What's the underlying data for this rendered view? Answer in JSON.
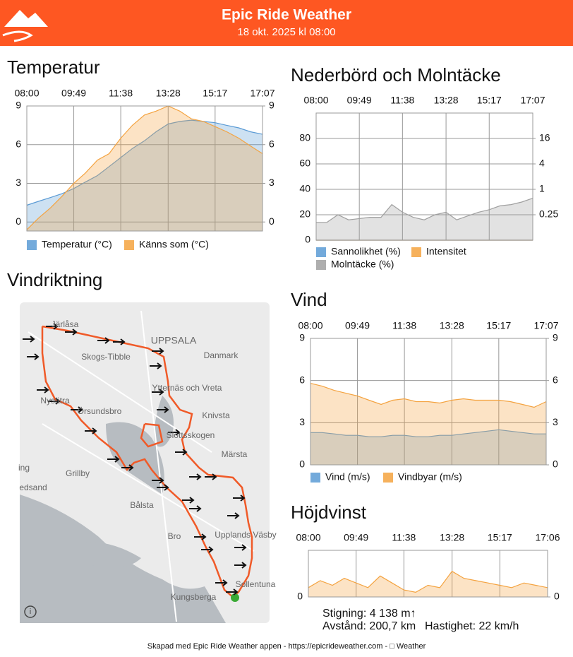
{
  "header": {
    "title": "Epic Ride Weather",
    "subtitle": "18 okt. 2025 kl 08:00"
  },
  "sections": {
    "wind_direction": "Vindriktning"
  },
  "map": {
    "labels": [
      "Järlåsa",
      "UPPSALA",
      "Skogs-Tibble",
      "Danmark",
      "Ytternäs och Vreta",
      "Knivsta",
      "Nysätra",
      "Örsundsbro",
      "Slottsskogen",
      "Märsta",
      "ing",
      "Grillby",
      "edsand",
      "Bålsta",
      "Bro",
      "Upplands Väsby",
      "Sollentuna",
      "Kungsberga"
    ]
  },
  "stats": {
    "climb": "Stigning: 4 138 m↑",
    "distance": "Avstånd: 200,7 km",
    "speed": "Hastighet: 22 km/h"
  },
  "footer": "Skapad med Epic Ride Weather appen - https://epicrideweather.com - □ Weather",
  "chart_data": [
    {
      "type": "area",
      "title": "Temperatur",
      "x": [
        "08:00",
        "08:27",
        "08:55",
        "09:22",
        "09:49",
        "10:16",
        "10:44",
        "11:11",
        "11:38",
        "12:05",
        "12:33",
        "13:00",
        "13:28",
        "13:55",
        "14:22",
        "14:50",
        "15:17",
        "15:44",
        "16:12",
        "16:39",
        "17:07"
      ],
      "xticks": [
        "08:00",
        "09:49",
        "11:38",
        "13:28",
        "15:17",
        "17:07"
      ],
      "ylim": [
        -0.7,
        9
      ],
      "yticks": [
        0,
        3,
        6,
        9
      ],
      "y2lim": [
        -0.7,
        9
      ],
      "y2ticks": [
        0,
        3,
        6,
        9
      ],
      "grid": true,
      "series": [
        {
          "name": "Temperatur (°C)",
          "color": "#5b9bd5",
          "values": [
            1.3,
            1.6,
            1.9,
            2.2,
            2.6,
            3.1,
            3.6,
            4.3,
            5.0,
            5.7,
            6.3,
            7.0,
            7.6,
            7.8,
            7.9,
            7.8,
            7.7,
            7.5,
            7.3,
            7.0,
            6.8
          ]
        },
        {
          "name": "Känns som (°C)",
          "color": "#f4a340",
          "values": [
            -0.6,
            0.3,
            1.1,
            2.0,
            3.0,
            3.8,
            4.8,
            5.3,
            6.5,
            7.5,
            8.3,
            8.6,
            9.0,
            8.6,
            8.0,
            7.8,
            7.4,
            7.0,
            6.5,
            5.9,
            5.3
          ]
        }
      ]
    },
    {
      "type": "area",
      "title": "Nederbörd och Molntäcke",
      "x": [
        "08:00",
        "08:27",
        "08:55",
        "09:22",
        "09:49",
        "10:16",
        "10:44",
        "11:11",
        "11:38",
        "12:05",
        "12:33",
        "13:00",
        "13:28",
        "13:55",
        "14:22",
        "14:50",
        "15:17",
        "15:44",
        "16:12",
        "16:39",
        "17:07"
      ],
      "xticks": [
        "08:00",
        "09:49",
        "11:38",
        "13:28",
        "15:17",
        "17:07"
      ],
      "ylim": [
        0,
        100
      ],
      "yticks": [
        0,
        20,
        40,
        60,
        80
      ],
      "y2lim": [
        0.0625,
        64
      ],
      "y2ticks": [
        0.25,
        1,
        4,
        16
      ],
      "y2log": true,
      "grid": true,
      "series": [
        {
          "name": "Sannolikhet (%)",
          "color": "#5b9bd5",
          "values": [
            0,
            0,
            0,
            0,
            0,
            0,
            0,
            0,
            0,
            0,
            0,
            0,
            0,
            0,
            0,
            0,
            0,
            0,
            0,
            0,
            0
          ]
        },
        {
          "name": "Intensitet",
          "color": "#f4a340",
          "axis": "y2",
          "values": [
            0,
            0,
            0,
            0,
            0,
            0,
            0,
            0,
            0,
            0,
            0,
            0,
            0,
            0,
            0,
            0,
            0,
            0,
            0,
            0,
            0
          ]
        },
        {
          "name": "Molntäcke (%)",
          "color": "#a0a0a0",
          "values": [
            14,
            14,
            20,
            16,
            17,
            18,
            18,
            28,
            22,
            18,
            16,
            20,
            22,
            16,
            19,
            22,
            24,
            27,
            28,
            30,
            33
          ]
        }
      ]
    },
    {
      "type": "area",
      "title": "Vind",
      "x": [
        "08:00",
        "08:27",
        "08:55",
        "09:22",
        "09:49",
        "10:16",
        "10:44",
        "11:11",
        "11:38",
        "12:05",
        "12:33",
        "13:00",
        "13:28",
        "13:55",
        "14:22",
        "14:50",
        "15:17",
        "15:44",
        "16:12",
        "16:39",
        "17:07"
      ],
      "xticks": [
        "08:00",
        "09:49",
        "11:38",
        "13:28",
        "15:17",
        "17:07"
      ],
      "ylim": [
        0,
        9
      ],
      "yticks": [
        0,
        3,
        6,
        9
      ],
      "y2lim": [
        0,
        9
      ],
      "y2ticks": [
        0,
        3,
        6,
        9
      ],
      "grid": true,
      "series": [
        {
          "name": "Vind (m/s)",
          "color": "#5b9bd5",
          "values": [
            2.3,
            2.3,
            2.2,
            2.1,
            2.1,
            2.0,
            2.0,
            2.1,
            2.1,
            2.0,
            2.0,
            2.1,
            2.1,
            2.2,
            2.3,
            2.4,
            2.5,
            2.4,
            2.3,
            2.2,
            2.2
          ]
        },
        {
          "name": "Vindbyar (m/s)",
          "color": "#f4a340",
          "values": [
            5.8,
            5.6,
            5.3,
            5.1,
            4.9,
            4.6,
            4.3,
            4.6,
            4.7,
            4.5,
            4.5,
            4.4,
            4.6,
            4.7,
            4.6,
            4.6,
            4.6,
            4.5,
            4.3,
            4.1,
            4.5
          ]
        }
      ]
    },
    {
      "type": "area",
      "title": "Höjdvinst",
      "x": [
        "08:00",
        "08:27",
        "08:55",
        "09:22",
        "09:49",
        "10:16",
        "10:44",
        "11:11",
        "11:38",
        "12:05",
        "12:33",
        "13:00",
        "13:28",
        "13:55",
        "14:22",
        "14:50",
        "15:17",
        "15:44",
        "16:12",
        "16:39",
        "17:06"
      ],
      "xticks": [
        "08:00",
        "09:49",
        "11:38",
        "13:28",
        "15:17",
        "17:06"
      ],
      "ylim": [
        0,
        100
      ],
      "yticks": [
        0
      ],
      "y2lim": [
        0,
        100
      ],
      "y2ticks": [
        0
      ],
      "grid": true,
      "series": [
        {
          "color": "#f4a340",
          "values": [
            20,
            35,
            25,
            40,
            30,
            20,
            45,
            30,
            15,
            10,
            25,
            20,
            55,
            40,
            35,
            30,
            25,
            20,
            30,
            25,
            20
          ]
        }
      ]
    }
  ]
}
